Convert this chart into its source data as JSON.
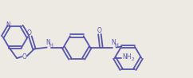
{
  "bg_color": "#ede9e3",
  "line_color": "#5555aa",
  "line_width": 1.3,
  "text_color": "#5555aa",
  "font_size": 5.5,
  "sub_font_size": 4.2,
  "figsize": [
    2.42,
    0.98
  ],
  "dpi": 100,
  "xlim": [
    0,
    242
  ],
  "ylim": [
    0,
    98
  ]
}
